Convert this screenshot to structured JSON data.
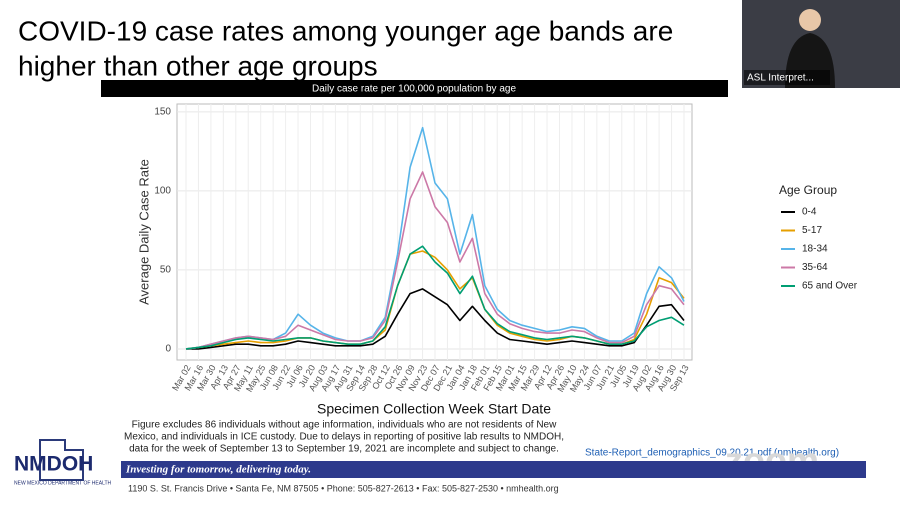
{
  "slide": {
    "title_lines": [
      "COVID-19 case rates among younger age bands are",
      "higher than other age groups"
    ],
    "footnote_lines": [
      "Figure excludes 86 individuals without age information, individuals who are not residents of New",
      "Mexico, and individuals in ICE custody. Due to delays in reporting of positive lab results to NMDOH,",
      "data for the week of September 13 to September 19, 2021 are incomplete and subject to change."
    ],
    "source_link": "State-Report_demographics_09.20.21.pdf (nmhealth.org)",
    "logo": "NMDOH",
    "logo_subtitle": "NEW MEXICO DEPARTMENT OF HEALTH",
    "tagline": "Investing for tomorrow, delivering today.",
    "address": "1190 S. St. Francis Drive • Santa Fe, NM 87505 • Phone: 505-827-2613 • Fax: 505-827-2530 • nmhealth.org"
  },
  "video": {
    "participant": "ASL Interpret...",
    "watermark": "zoom"
  },
  "chart_data": {
    "type": "line",
    "title": "Daily case rate per 100,000 population by age",
    "x_label": "Specimen Collection Week Start Date",
    "y_label": "Average Daily Case Rate",
    "legend_title": "Age Group",
    "legend_position": "right",
    "grid": true,
    "categories": [
      "Mar 02",
      "Mar 16",
      "Mar 30",
      "Apr 13",
      "Apr 27",
      "May 11",
      "May 25",
      "Jun 08",
      "Jun 22",
      "Jul 06",
      "Jul 20",
      "Aug 03",
      "Aug 17",
      "Aug 31",
      "Sep 14",
      "Sep 28",
      "Oct 12",
      "Oct 26",
      "Nov 09",
      "Nov 23",
      "Dec 07",
      "Dec 21",
      "Jan 04",
      "Jan 18",
      "Feb 01",
      "Feb 15",
      "Mar 01",
      "Mar 15",
      "Mar 29",
      "Apr 12",
      "Apr 26",
      "May 10",
      "May 24",
      "Jun 07",
      "Jun 21",
      "Jul 05",
      "Jul 19",
      "Aug 02",
      "Aug 16",
      "Aug 30",
      "Sep 13"
    ],
    "ylim": [
      -7,
      155
    ],
    "yticks": [
      0,
      50,
      100,
      150
    ],
    "series": [
      {
        "name": "0-4",
        "color": "#000000",
        "values": [
          0,
          0,
          1,
          2,
          3,
          3,
          2,
          2,
          3,
          5,
          4,
          3,
          2,
          2,
          2,
          3,
          8,
          22,
          35,
          38,
          33,
          28,
          18,
          27,
          18,
          10,
          6,
          5,
          4,
          3,
          4,
          5,
          4,
          3,
          2,
          2,
          4,
          15,
          27,
          28,
          18
        ]
      },
      {
        "name": "5-17",
        "color": "#e69f00",
        "values": [
          0,
          1,
          2,
          3,
          4,
          5,
          4,
          4,
          5,
          7,
          7,
          5,
          4,
          3,
          3,
          5,
          12,
          40,
          60,
          62,
          58,
          50,
          38,
          45,
          25,
          15,
          10,
          8,
          6,
          5,
          6,
          8,
          7,
          5,
          3,
          3,
          6,
          22,
          45,
          42,
          32
        ]
      },
      {
        "name": "18-34",
        "color": "#56b4e9",
        "values": [
          0,
          1,
          3,
          5,
          7,
          8,
          7,
          6,
          10,
          22,
          15,
          10,
          7,
          5,
          5,
          8,
          20,
          60,
          115,
          140,
          105,
          95,
          60,
          85,
          40,
          25,
          18,
          15,
          13,
          11,
          12,
          14,
          13,
          8,
          5,
          5,
          10,
          35,
          52,
          45,
          30
        ]
      },
      {
        "name": "35-64",
        "color": "#cc79a7",
        "values": [
          0,
          1,
          3,
          5,
          7,
          8,
          7,
          6,
          8,
          15,
          12,
          9,
          6,
          5,
          5,
          7,
          18,
          55,
          95,
          112,
          90,
          80,
          55,
          70,
          35,
          22,
          16,
          13,
          11,
          10,
          10,
          12,
          11,
          7,
          4,
          4,
          8,
          28,
          40,
          38,
          28
        ]
      },
      {
        "name": "65 and Over",
        "color": "#009e73",
        "values": [
          0,
          1,
          2,
          4,
          6,
          7,
          6,
          5,
          6,
          7,
          7,
          5,
          4,
          3,
          3,
          5,
          14,
          40,
          60,
          65,
          55,
          48,
          35,
          46,
          25,
          16,
          11,
          9,
          7,
          6,
          7,
          8,
          7,
          5,
          3,
          3,
          5,
          14,
          18,
          20,
          15
        ]
      }
    ]
  }
}
